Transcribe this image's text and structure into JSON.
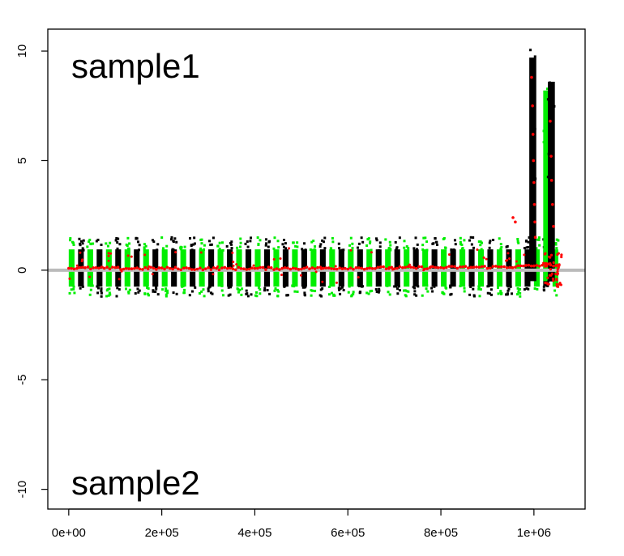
{
  "chart_data": {
    "type": "scatter",
    "title": "",
    "xlabel": "",
    "ylabel": "",
    "xlim": [
      -45000,
      1110000
    ],
    "ylim": [
      -10.9,
      11.0
    ],
    "x_ticks": [
      {
        "value": 0,
        "label": "0e+00"
      },
      {
        "value": 200000,
        "label": "2e+05"
      },
      {
        "value": 400000,
        "label": "4e+05"
      },
      {
        "value": 600000,
        "label": "6e+05"
      },
      {
        "value": 800000,
        "label": "8e+05"
      },
      {
        "value": 1000000,
        "label": "1e+06"
      }
    ],
    "y_ticks": [
      {
        "value": -10,
        "label": "-10"
      },
      {
        "value": -5,
        "label": "-5"
      },
      {
        "value": 0,
        "label": "0"
      },
      {
        "value": 5,
        "label": "5"
      },
      {
        "value": 10,
        "label": "10"
      }
    ],
    "reference_line": {
      "y": 0,
      "color": "#bbbbbb"
    },
    "panel_labels": {
      "top": "sample1",
      "bottom": "sample2"
    },
    "point_bands": {
      "x_start": 0,
      "x_end": 1060000,
      "band_width": 20000,
      "colors": [
        "#00ee00",
        "#000000"
      ],
      "y_low": -0.9,
      "y_high": 1.1
    },
    "spikes": [
      {
        "x_min": 990000,
        "x_max": 1005000,
        "y_min": -0.5,
        "y_max": 10.1,
        "color": "#000000"
      },
      {
        "x_min": 1020000,
        "x_max": 1040000,
        "y_min": -0.5,
        "y_max": 8.6,
        "color": "#00ee00"
      },
      {
        "x_min": 1030000,
        "x_max": 1045000,
        "y_min": -0.5,
        "y_max": 9.0,
        "color": "#000000"
      }
    ],
    "trend": {
      "color": "#ff0000",
      "points": [
        [
          0,
          0.1
        ],
        [
          100000,
          0.08
        ],
        [
          200000,
          0.08
        ],
        [
          300000,
          0.07
        ],
        [
          400000,
          0.08
        ],
        [
          500000,
          0.09
        ],
        [
          600000,
          0.1
        ],
        [
          700000,
          0.1
        ],
        [
          800000,
          0.12
        ],
        [
          900000,
          0.14
        ],
        [
          960000,
          0.16
        ],
        [
          1000000,
          0.2
        ],
        [
          1030000,
          0.25
        ],
        [
          1060000,
          0.22
        ]
      ],
      "spike_points": [
        [
          995000,
          8.8
        ],
        [
          997000,
          7.5
        ],
        [
          998000,
          6.2
        ],
        [
          999000,
          5.0
        ],
        [
          1000000,
          4.0
        ],
        [
          1001000,
          3.0
        ],
        [
          1002000,
          2.2
        ],
        [
          1003000,
          1.5
        ],
        [
          1035000,
          6.8
        ],
        [
          1037000,
          5.2
        ],
        [
          1038000,
          4.1
        ],
        [
          1040000,
          3.0
        ],
        [
          1042000,
          2.0
        ],
        [
          955000,
          2.4
        ],
        [
          960000,
          2.2
        ]
      ]
    }
  }
}
